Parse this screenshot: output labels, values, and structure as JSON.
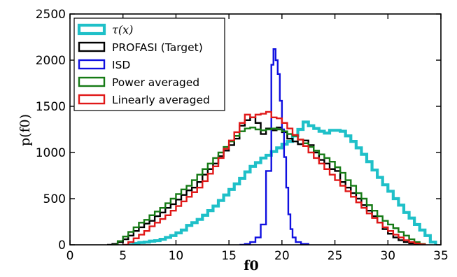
{
  "chart_data": {
    "type": "histogram",
    "xlabel": "f0",
    "ylabel": "p(f0)",
    "xlim": [
      0,
      35
    ],
    "ylim": [
      0,
      2500
    ],
    "xticks": [
      0,
      5,
      10,
      15,
      20,
      25,
      30,
      35
    ],
    "yticks": [
      0,
      500,
      1000,
      1500,
      2000,
      2500
    ],
    "legend_position": "top-left",
    "series": [
      {
        "name": "τ(x)",
        "color": "#1fc0c8",
        "stroke": "thick",
        "points": [
          [
            5.5,
            0
          ],
          [
            6.0,
            15
          ],
          [
            6.5,
            25
          ],
          [
            7.0,
            30
          ],
          [
            7.5,
            40
          ],
          [
            8.0,
            45
          ],
          [
            8.5,
            60
          ],
          [
            9.0,
            80
          ],
          [
            9.5,
            100
          ],
          [
            10.0,
            130
          ],
          [
            10.5,
            160
          ],
          [
            11.0,
            210
          ],
          [
            11.5,
            240
          ],
          [
            12.0,
            275
          ],
          [
            12.5,
            320
          ],
          [
            13.0,
            370
          ],
          [
            13.5,
            420
          ],
          [
            14.0,
            480
          ],
          [
            14.5,
            540
          ],
          [
            15.0,
            600
          ],
          [
            15.5,
            660
          ],
          [
            16.0,
            720
          ],
          [
            16.5,
            790
          ],
          [
            17.0,
            850
          ],
          [
            17.5,
            890
          ],
          [
            18.0,
            940
          ],
          [
            18.5,
            970
          ],
          [
            19.0,
            1010
          ],
          [
            19.5,
            1050
          ],
          [
            20.0,
            1090
          ],
          [
            20.5,
            1120
          ],
          [
            21.0,
            1180
          ],
          [
            21.5,
            1250
          ],
          [
            22.0,
            1330
          ],
          [
            22.5,
            1290
          ],
          [
            23.0,
            1260
          ],
          [
            23.5,
            1230
          ],
          [
            24.0,
            1210
          ],
          [
            24.5,
            1240
          ],
          [
            25.0,
            1240
          ],
          [
            25.5,
            1230
          ],
          [
            26.0,
            1180
          ],
          [
            26.5,
            1120
          ],
          [
            27.0,
            1050
          ],
          [
            27.5,
            980
          ],
          [
            28.0,
            900
          ],
          [
            28.5,
            810
          ],
          [
            29.0,
            730
          ],
          [
            29.5,
            650
          ],
          [
            30.0,
            580
          ],
          [
            30.5,
            500
          ],
          [
            31.0,
            430
          ],
          [
            31.5,
            350
          ],
          [
            32.0,
            290
          ],
          [
            32.5,
            220
          ],
          [
            33.0,
            160
          ],
          [
            33.5,
            100
          ],
          [
            34.0,
            30
          ],
          [
            34.5,
            0
          ]
        ]
      },
      {
        "name": "PROFASI (Target)",
        "color": "#000000",
        "stroke": "normal",
        "points": [
          [
            3.5,
            0
          ],
          [
            4.0,
            10
          ],
          [
            4.5,
            30
          ],
          [
            5.0,
            60
          ],
          [
            5.5,
            100
          ],
          [
            6.0,
            150
          ],
          [
            6.5,
            190
          ],
          [
            7.0,
            230
          ],
          [
            7.5,
            260
          ],
          [
            8.0,
            310
          ],
          [
            8.5,
            350
          ],
          [
            9.0,
            400
          ],
          [
            9.5,
            440
          ],
          [
            10.0,
            490
          ],
          [
            10.5,
            540
          ],
          [
            11.0,
            590
          ],
          [
            11.5,
            620
          ],
          [
            12.0,
            680
          ],
          [
            12.5,
            760
          ],
          [
            13.0,
            820
          ],
          [
            13.5,
            880
          ],
          [
            14.0,
            960
          ],
          [
            14.5,
            1020
          ],
          [
            15.0,
            1080
          ],
          [
            15.5,
            1150
          ],
          [
            16.0,
            1290
          ],
          [
            16.5,
            1350
          ],
          [
            17.0,
            1380
          ],
          [
            17.5,
            1320
          ],
          [
            18.0,
            1200
          ],
          [
            18.5,
            1260
          ],
          [
            19.0,
            1240
          ],
          [
            19.5,
            1270
          ],
          [
            20.0,
            1220
          ],
          [
            20.5,
            1150
          ],
          [
            21.0,
            1120
          ],
          [
            21.5,
            1090
          ],
          [
            22.0,
            1130
          ],
          [
            22.5,
            1080
          ],
          [
            23.0,
            1000
          ],
          [
            23.5,
            920
          ],
          [
            24.0,
            880
          ],
          [
            24.5,
            820
          ],
          [
            25.0,
            800
          ],
          [
            25.5,
            680
          ],
          [
            26.0,
            620
          ],
          [
            26.5,
            560
          ],
          [
            27.0,
            500
          ],
          [
            27.5,
            430
          ],
          [
            28.0,
            370
          ],
          [
            28.5,
            310
          ],
          [
            29.0,
            240
          ],
          [
            29.5,
            170
          ],
          [
            30.0,
            120
          ],
          [
            30.5,
            80
          ],
          [
            31.0,
            50
          ],
          [
            31.5,
            30
          ],
          [
            32.0,
            15
          ],
          [
            32.5,
            5
          ],
          [
            33.0,
            0
          ]
        ]
      },
      {
        "name": "ISD",
        "color": "#1010e0",
        "stroke": "normal",
        "points": [
          [
            16.0,
            0
          ],
          [
            16.5,
            10
          ],
          [
            17.0,
            30
          ],
          [
            17.5,
            80
          ],
          [
            18.0,
            220
          ],
          [
            18.5,
            800
          ],
          [
            19.0,
            1950
          ],
          [
            19.2,
            2120
          ],
          [
            19.4,
            2000
          ],
          [
            19.6,
            1850
          ],
          [
            19.8,
            1560
          ],
          [
            20.0,
            1250
          ],
          [
            20.2,
            950
          ],
          [
            20.4,
            620
          ],
          [
            20.6,
            330
          ],
          [
            20.8,
            170
          ],
          [
            21.0,
            80
          ],
          [
            21.3,
            30
          ],
          [
            21.8,
            10
          ],
          [
            22.5,
            0
          ]
        ]
      },
      {
        "name": "Power averaged",
        "color": "#157a15",
        "stroke": "normal",
        "points": [
          [
            4.0,
            0
          ],
          [
            4.5,
            40
          ],
          [
            5.0,
            90
          ],
          [
            5.5,
            140
          ],
          [
            6.0,
            190
          ],
          [
            6.5,
            240
          ],
          [
            7.0,
            270
          ],
          [
            7.5,
            320
          ],
          [
            8.0,
            360
          ],
          [
            8.5,
            400
          ],
          [
            9.0,
            450
          ],
          [
            9.5,
            500
          ],
          [
            10.0,
            550
          ],
          [
            10.5,
            600
          ],
          [
            11.0,
            640
          ],
          [
            11.5,
            700
          ],
          [
            12.0,
            760
          ],
          [
            12.5,
            820
          ],
          [
            13.0,
            880
          ],
          [
            13.5,
            940
          ],
          [
            14.0,
            1000
          ],
          [
            14.5,
            1060
          ],
          [
            15.0,
            1120
          ],
          [
            15.5,
            1180
          ],
          [
            16.0,
            1230
          ],
          [
            16.5,
            1260
          ],
          [
            17.0,
            1270
          ],
          [
            17.5,
            1250
          ],
          [
            18.0,
            1240
          ],
          [
            18.5,
            1250
          ],
          [
            19.0,
            1260
          ],
          [
            19.5,
            1250
          ],
          [
            20.0,
            1230
          ],
          [
            20.5,
            1200
          ],
          [
            21.0,
            1180
          ],
          [
            21.5,
            1140
          ],
          [
            22.0,
            1100
          ],
          [
            22.5,
            1060
          ],
          [
            23.0,
            1020
          ],
          [
            23.5,
            980
          ],
          [
            24.0,
            940
          ],
          [
            24.5,
            900
          ],
          [
            25.0,
            840
          ],
          [
            25.5,
            780
          ],
          [
            26.0,
            700
          ],
          [
            26.5,
            640
          ],
          [
            27.0,
            560
          ],
          [
            27.5,
            500
          ],
          [
            28.0,
            430
          ],
          [
            28.5,
            370
          ],
          [
            29.0,
            310
          ],
          [
            29.5,
            260
          ],
          [
            30.0,
            220
          ],
          [
            30.5,
            180
          ],
          [
            31.0,
            140
          ],
          [
            31.5,
            100
          ],
          [
            32.0,
            60
          ],
          [
            32.5,
            30
          ],
          [
            33.0,
            10
          ],
          [
            33.5,
            0
          ]
        ]
      },
      {
        "name": "Linearly averaged",
        "color": "#e01818",
        "stroke": "normal",
        "points": [
          [
            5.0,
            0
          ],
          [
            5.5,
            30
          ],
          [
            6.0,
            70
          ],
          [
            6.5,
            110
          ],
          [
            7.0,
            150
          ],
          [
            7.5,
            200
          ],
          [
            8.0,
            240
          ],
          [
            8.5,
            280
          ],
          [
            9.0,
            320
          ],
          [
            9.5,
            370
          ],
          [
            10.0,
            420
          ],
          [
            10.5,
            470
          ],
          [
            11.0,
            520
          ],
          [
            11.5,
            570
          ],
          [
            12.0,
            620
          ],
          [
            12.5,
            690
          ],
          [
            13.0,
            770
          ],
          [
            13.5,
            850
          ],
          [
            14.0,
            940
          ],
          [
            14.5,
            1040
          ],
          [
            15.0,
            1130
          ],
          [
            15.5,
            1220
          ],
          [
            16.0,
            1320
          ],
          [
            16.5,
            1410
          ],
          [
            17.0,
            1380
          ],
          [
            17.5,
            1410
          ],
          [
            18.0,
            1420
          ],
          [
            18.5,
            1440
          ],
          [
            19.0,
            1380
          ],
          [
            19.5,
            1370
          ],
          [
            20.0,
            1320
          ],
          [
            20.5,
            1260
          ],
          [
            21.0,
            1190
          ],
          [
            21.5,
            1140
          ],
          [
            22.0,
            1070
          ],
          [
            22.5,
            1000
          ],
          [
            23.0,
            940
          ],
          [
            23.5,
            880
          ],
          [
            24.0,
            820
          ],
          [
            24.5,
            760
          ],
          [
            25.0,
            700
          ],
          [
            25.5,
            640
          ],
          [
            26.0,
            580
          ],
          [
            26.5,
            520
          ],
          [
            27.0,
            460
          ],
          [
            27.5,
            400
          ],
          [
            28.0,
            340
          ],
          [
            28.5,
            290
          ],
          [
            29.0,
            240
          ],
          [
            29.5,
            190
          ],
          [
            30.0,
            150
          ],
          [
            30.5,
            110
          ],
          [
            31.0,
            80
          ],
          [
            31.5,
            50
          ],
          [
            32.0,
            30
          ],
          [
            32.5,
            15
          ],
          [
            33.0,
            5
          ],
          [
            33.5,
            0
          ]
        ]
      }
    ]
  }
}
